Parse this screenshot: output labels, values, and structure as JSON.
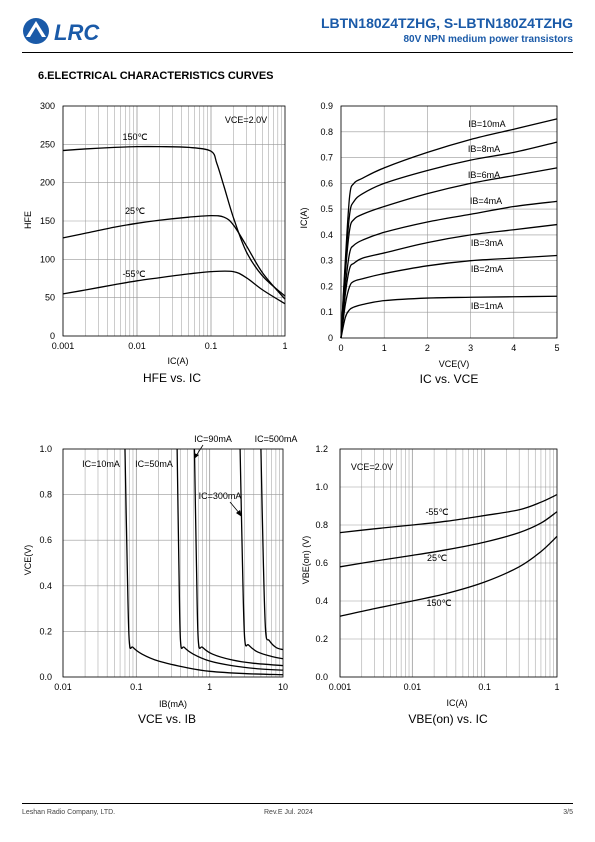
{
  "header": {
    "title": "LBTN180Z4TZHG, S-LBTN180Z4TZHG",
    "subtitle": "80V NPN medium power transistors",
    "logo_text": "LRC",
    "brand_color": "#1a5aa8"
  },
  "section_title": "6.ELECTRICAL CHARACTERISTICS CURVES",
  "footer": {
    "company": "Leshan Radio Company, LTD.",
    "revision": "Rev.E   Jul.  2024",
    "page": "3/5"
  },
  "chart_data": [
    {
      "type": "line",
      "caption": "HFE vs. IC",
      "xlabel": "IC(A)",
      "ylabel": "HFE",
      "xscale": "log",
      "xlim": [
        0.001,
        1
      ],
      "ylim": [
        0,
        300
      ],
      "xticks": [
        "0.001",
        "0.01",
        "0.1",
        "1"
      ],
      "yticks": [
        "0",
        "50",
        "100",
        "150",
        "200",
        "250",
        "300"
      ],
      "annotations": [
        "VCE=2.0V"
      ],
      "series": [
        {
          "name": "150℃",
          "x": [
            0.001,
            0.002,
            0.005,
            0.01,
            0.02,
            0.05,
            0.1,
            0.12,
            0.15,
            0.2,
            0.3,
            0.5,
            1
          ],
          "y": [
            242,
            244,
            246,
            247,
            247,
            246,
            241,
            225,
            195,
            155,
            110,
            78,
            52
          ]
        },
        {
          "name": "25℃",
          "x": [
            0.001,
            0.002,
            0.005,
            0.01,
            0.02,
            0.05,
            0.1,
            0.15,
            0.2,
            0.3,
            0.5,
            1
          ],
          "y": [
            128,
            134,
            142,
            147,
            151,
            155,
            157,
            155,
            145,
            118,
            82,
            48
          ]
        },
        {
          "name": "-55℃",
          "x": [
            0.001,
            0.002,
            0.005,
            0.01,
            0.02,
            0.05,
            0.1,
            0.2,
            0.3,
            0.5,
            1
          ],
          "y": [
            55,
            60,
            67,
            72,
            76,
            81,
            84,
            84,
            76,
            60,
            42
          ]
        }
      ]
    },
    {
      "type": "line",
      "caption": "IC vs. VCE",
      "xlabel": "VCE(V)",
      "ylabel": "IC(A)",
      "xscale": "linear",
      "xlim": [
        0,
        5
      ],
      "ylim": [
        0,
        0.9
      ],
      "xticks": [
        "0",
        "1",
        "2",
        "3",
        "4",
        "5"
      ],
      "yticks": [
        "0",
        "0.1",
        "0.2",
        "0.3",
        "0.4",
        "0.5",
        "0.6",
        "0.7",
        "0.8",
        "0.9"
      ],
      "series": [
        {
          "name": "IB=10mA",
          "x": [
            0,
            0.1,
            0.2,
            0.3,
            0.5,
            1,
            2,
            3,
            4,
            5
          ],
          "y": [
            0,
            0.3,
            0.55,
            0.6,
            0.62,
            0.66,
            0.72,
            0.77,
            0.81,
            0.85
          ]
        },
        {
          "name": "IB=8mA",
          "x": [
            0,
            0.1,
            0.2,
            0.3,
            0.5,
            1,
            2,
            3,
            4,
            5
          ],
          "y": [
            0,
            0.28,
            0.48,
            0.53,
            0.56,
            0.6,
            0.65,
            0.69,
            0.72,
            0.76
          ]
        },
        {
          "name": "IB=6mA",
          "x": [
            0,
            0.1,
            0.2,
            0.3,
            0.5,
            1,
            2,
            3,
            4,
            5
          ],
          "y": [
            0,
            0.25,
            0.42,
            0.46,
            0.48,
            0.51,
            0.56,
            0.6,
            0.63,
            0.66
          ]
        },
        {
          "name": "IB=4mA",
          "x": [
            0,
            0.1,
            0.2,
            0.3,
            0.5,
            1,
            2,
            3,
            4,
            5
          ],
          "y": [
            0,
            0.2,
            0.33,
            0.36,
            0.38,
            0.41,
            0.45,
            0.48,
            0.51,
            0.53
          ]
        },
        {
          "name": "IB=3mA",
          "x": [
            0,
            0.1,
            0.2,
            0.3,
            0.5,
            1,
            2,
            3,
            4,
            5
          ],
          "y": [
            0,
            0.17,
            0.27,
            0.29,
            0.31,
            0.33,
            0.37,
            0.4,
            0.42,
            0.44
          ]
        },
        {
          "name": "IB=2mA",
          "x": [
            0,
            0.1,
            0.2,
            0.3,
            0.5,
            1,
            2,
            3,
            4,
            5
          ],
          "y": [
            0,
            0.13,
            0.2,
            0.22,
            0.23,
            0.25,
            0.28,
            0.3,
            0.31,
            0.32
          ]
        },
        {
          "name": "IB=1mA",
          "x": [
            0,
            0.1,
            0.2,
            0.3,
            0.5,
            1,
            2,
            3,
            4,
            5
          ],
          "y": [
            0,
            0.08,
            0.11,
            0.12,
            0.13,
            0.145,
            0.155,
            0.158,
            0.16,
            0.162
          ]
        }
      ]
    },
    {
      "type": "line",
      "caption": "VCE vs. IB",
      "xlabel": "IB(mA)",
      "ylabel": "VCE(V)",
      "xscale": "log",
      "xlim": [
        0.01,
        10
      ],
      "ylim": [
        0,
        1
      ],
      "xticks": [
        "0.01",
        "0.1",
        "1",
        "10"
      ],
      "yticks": [
        "0.0",
        "0.2",
        "0.4",
        "0.6",
        "0.8",
        "1.0"
      ],
      "series": [
        {
          "name": "IC=10mA",
          "x": [
            0.07,
            0.075,
            0.08,
            0.09,
            0.12,
            0.2,
            0.5,
            1,
            3,
            10
          ],
          "y": [
            1.0,
            0.5,
            0.16,
            0.13,
            0.1,
            0.07,
            0.04,
            0.025,
            0.015,
            0.01
          ]
        },
        {
          "name": "IC=50mA",
          "x": [
            0.36,
            0.38,
            0.4,
            0.45,
            0.6,
            1,
            2,
            5,
            10
          ],
          "y": [
            1.0,
            0.5,
            0.16,
            0.13,
            0.1,
            0.07,
            0.05,
            0.035,
            0.03
          ]
        },
        {
          "name": "IC=90mA",
          "x": [
            0.62,
            0.66,
            0.7,
            0.8,
            1.1,
            2,
            4,
            10
          ],
          "y": [
            1.0,
            0.5,
            0.16,
            0.13,
            0.1,
            0.075,
            0.06,
            0.05
          ]
        },
        {
          "name": "IC=300mA",
          "x": [
            2.6,
            2.8,
            3.0,
            3.4,
            4.5,
            7,
            10
          ],
          "y": [
            1.0,
            0.5,
            0.17,
            0.14,
            0.11,
            0.09,
            0.08
          ]
        },
        {
          "name": "IC=500mA",
          "x": [
            5.0,
            5.4,
            5.8,
            6.5,
            8,
            10
          ],
          "y": [
            1.0,
            0.5,
            0.2,
            0.16,
            0.13,
            0.12
          ]
        }
      ]
    },
    {
      "type": "line",
      "caption": "VBE(on) vs. IC",
      "xlabel": "IC(A)",
      "ylabel": "VBE(on) (V)",
      "xscale": "log",
      "xlim": [
        0.001,
        1
      ],
      "ylim": [
        0,
        1.2
      ],
      "xticks": [
        "0.001",
        "0.01",
        "0.1",
        "1"
      ],
      "yticks": [
        "0.0",
        "0.2",
        "0.4",
        "0.6",
        "0.8",
        "1.0",
        "1.2"
      ],
      "annotations": [
        "VCE=2.0V"
      ],
      "series": [
        {
          "name": "-55℃",
          "x": [
            0.001,
            0.003,
            0.01,
            0.03,
            0.1,
            0.3,
            0.6,
            1
          ],
          "y": [
            0.76,
            0.78,
            0.8,
            0.82,
            0.85,
            0.88,
            0.92,
            0.96
          ]
        },
        {
          "name": "25℃",
          "x": [
            0.001,
            0.003,
            0.01,
            0.03,
            0.1,
            0.3,
            0.6,
            1
          ],
          "y": [
            0.58,
            0.61,
            0.64,
            0.67,
            0.71,
            0.76,
            0.81,
            0.87
          ]
        },
        {
          "name": "150℃",
          "x": [
            0.001,
            0.003,
            0.01,
            0.03,
            0.1,
            0.3,
            0.6,
            1
          ],
          "y": [
            0.32,
            0.36,
            0.4,
            0.44,
            0.5,
            0.58,
            0.66,
            0.74
          ]
        }
      ]
    }
  ]
}
